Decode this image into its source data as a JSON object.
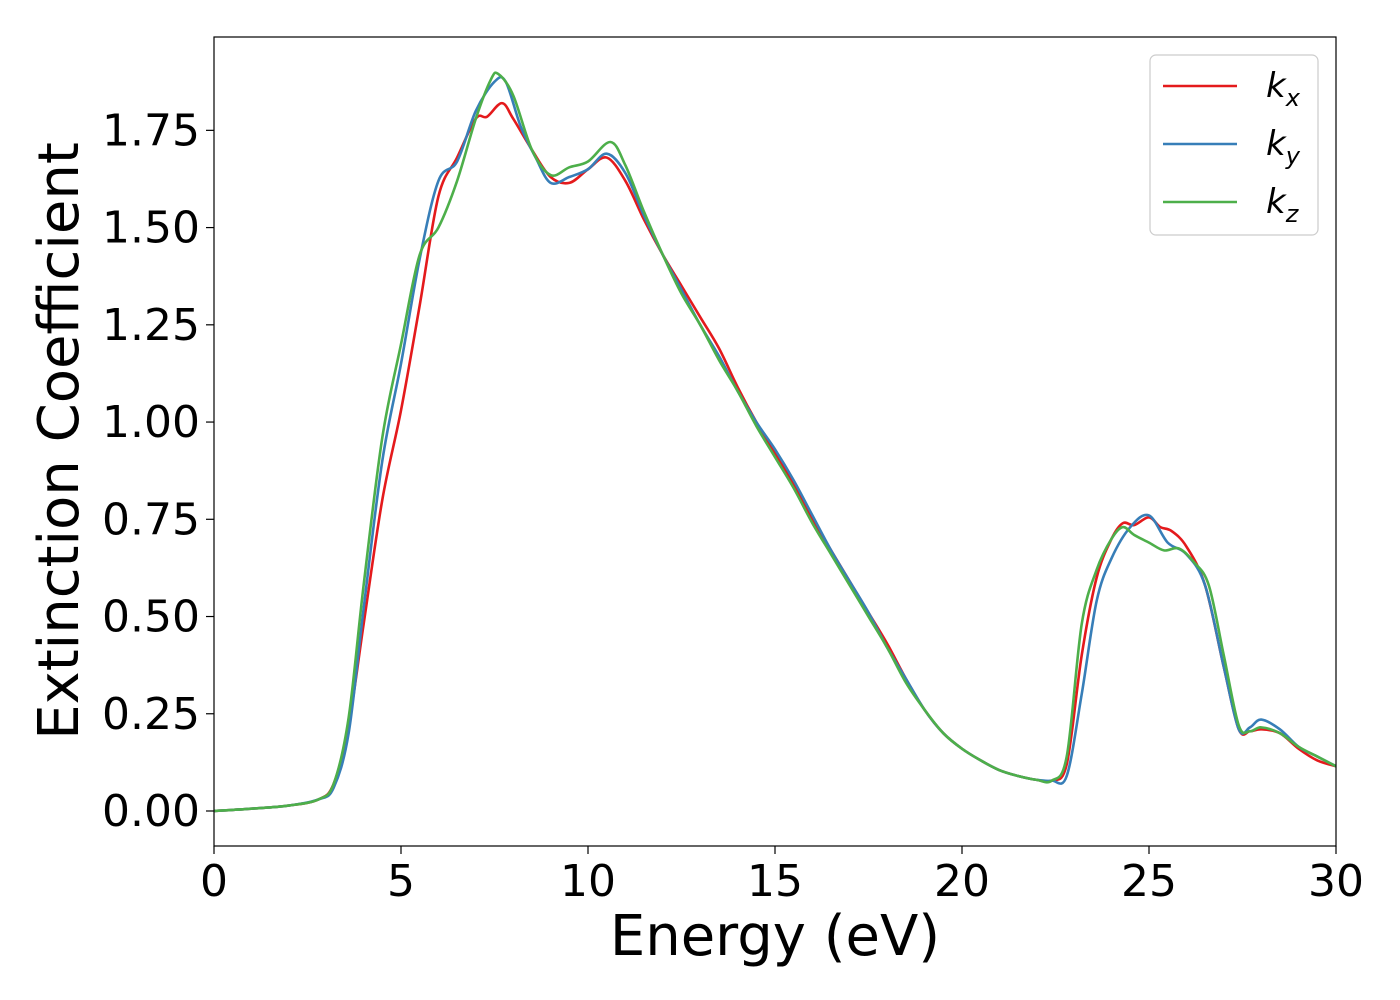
{
  "chart_data": {
    "type": "line",
    "title": "",
    "xlabel": "Energy (eV)",
    "ylabel": "Extinction Coefficient",
    "xlim": [
      0,
      30
    ],
    "ylim": [
      -0.09,
      1.99
    ],
    "xticks": [
      0,
      5,
      10,
      15,
      20,
      25,
      30
    ],
    "xtick_labels": [
      "0",
      "5",
      "10",
      "15",
      "20",
      "25",
      "30"
    ],
    "yticks": [
      0.0,
      0.25,
      0.5,
      0.75,
      1.0,
      1.25,
      1.5,
      1.75
    ],
    "ytick_labels": [
      "0.00",
      "0.25",
      "0.50",
      "0.75",
      "1.00",
      "1.25",
      "1.50",
      "1.75"
    ],
    "grid": false,
    "legend_position": "top-right",
    "series": [
      {
        "name": "k_x",
        "legend_base": "k",
        "legend_sub": "x",
        "color": "#e41a1c",
        "points": [
          [
            0,
            0.0
          ],
          [
            1,
            0.006
          ],
          [
            2,
            0.014
          ],
          [
            2.8,
            0.03
          ],
          [
            3.2,
            0.07
          ],
          [
            3.6,
            0.22
          ],
          [
            4.0,
            0.48
          ],
          [
            4.5,
            0.8
          ],
          [
            5.0,
            1.03
          ],
          [
            5.5,
            1.3
          ],
          [
            6.0,
            1.58
          ],
          [
            6.5,
            1.68
          ],
          [
            7.0,
            1.78
          ],
          [
            7.3,
            1.785
          ],
          [
            7.7,
            1.82
          ],
          [
            8.0,
            1.78
          ],
          [
            8.5,
            1.7
          ],
          [
            9.0,
            1.63
          ],
          [
            9.5,
            1.615
          ],
          [
            10.0,
            1.65
          ],
          [
            10.5,
            1.68
          ],
          [
            11.0,
            1.62
          ],
          [
            11.5,
            1.52
          ],
          [
            12.0,
            1.43
          ],
          [
            12.5,
            1.35
          ],
          [
            13.0,
            1.27
          ],
          [
            13.5,
            1.19
          ],
          [
            14.0,
            1.09
          ],
          [
            14.5,
            1.0
          ],
          [
            15.0,
            0.92
          ],
          [
            15.5,
            0.84
          ],
          [
            16.0,
            0.75
          ],
          [
            16.5,
            0.67
          ],
          [
            17.0,
            0.59
          ],
          [
            17.5,
            0.51
          ],
          [
            18.0,
            0.43
          ],
          [
            18.5,
            0.34
          ],
          [
            19.0,
            0.26
          ],
          [
            19.5,
            0.2
          ],
          [
            20.0,
            0.16
          ],
          [
            20.5,
            0.13
          ],
          [
            21.0,
            0.105
          ],
          [
            21.5,
            0.09
          ],
          [
            22.0,
            0.08
          ],
          [
            22.4,
            0.078
          ],
          [
            22.8,
            0.12
          ],
          [
            23.2,
            0.4
          ],
          [
            23.6,
            0.6
          ],
          [
            24.0,
            0.7
          ],
          [
            24.3,
            0.74
          ],
          [
            24.6,
            0.735
          ],
          [
            25.0,
            0.755
          ],
          [
            25.3,
            0.73
          ],
          [
            25.6,
            0.72
          ],
          [
            26.0,
            0.68
          ],
          [
            26.5,
            0.58
          ],
          [
            27.0,
            0.37
          ],
          [
            27.4,
            0.21
          ],
          [
            27.7,
            0.205
          ],
          [
            28.0,
            0.21
          ],
          [
            28.5,
            0.2
          ],
          [
            29.0,
            0.16
          ],
          [
            29.5,
            0.13
          ],
          [
            30,
            0.115
          ]
        ]
      },
      {
        "name": "k_y",
        "legend_base": "k",
        "legend_sub": "y",
        "color": "#377eb8",
        "points": [
          [
            0,
            0.0
          ],
          [
            1,
            0.006
          ],
          [
            2,
            0.014
          ],
          [
            2.8,
            0.03
          ],
          [
            3.2,
            0.06
          ],
          [
            3.6,
            0.2
          ],
          [
            4.0,
            0.52
          ],
          [
            4.5,
            0.9
          ],
          [
            5.0,
            1.15
          ],
          [
            5.5,
            1.42
          ],
          [
            6.0,
            1.62
          ],
          [
            6.5,
            1.67
          ],
          [
            7.0,
            1.8
          ],
          [
            7.5,
            1.875
          ],
          [
            7.8,
            1.875
          ],
          [
            8.2,
            1.76
          ],
          [
            8.6,
            1.68
          ],
          [
            9.0,
            1.615
          ],
          [
            9.5,
            1.63
          ],
          [
            10.0,
            1.65
          ],
          [
            10.5,
            1.69
          ],
          [
            11.0,
            1.64
          ],
          [
            11.5,
            1.53
          ],
          [
            12.0,
            1.43
          ],
          [
            12.5,
            1.34
          ],
          [
            13.0,
            1.25
          ],
          [
            13.5,
            1.17
          ],
          [
            14.0,
            1.08
          ],
          [
            14.5,
            1.0
          ],
          [
            15.0,
            0.93
          ],
          [
            15.5,
            0.85
          ],
          [
            16.0,
            0.76
          ],
          [
            16.5,
            0.67
          ],
          [
            17.0,
            0.59
          ],
          [
            17.5,
            0.51
          ],
          [
            18.0,
            0.42
          ],
          [
            18.5,
            0.34
          ],
          [
            19.0,
            0.26
          ],
          [
            19.5,
            0.2
          ],
          [
            20.0,
            0.16
          ],
          [
            20.5,
            0.13
          ],
          [
            21.0,
            0.105
          ],
          [
            21.5,
            0.09
          ],
          [
            22.0,
            0.08
          ],
          [
            22.4,
            0.078
          ],
          [
            22.8,
            0.09
          ],
          [
            23.2,
            0.3
          ],
          [
            23.6,
            0.54
          ],
          [
            24.0,
            0.65
          ],
          [
            24.5,
            0.73
          ],
          [
            25.0,
            0.76
          ],
          [
            25.5,
            0.69
          ],
          [
            26.0,
            0.66
          ],
          [
            26.5,
            0.58
          ],
          [
            27.0,
            0.37
          ],
          [
            27.4,
            0.21
          ],
          [
            27.7,
            0.215
          ],
          [
            28.0,
            0.235
          ],
          [
            28.5,
            0.21
          ],
          [
            29.0,
            0.165
          ],
          [
            29.5,
            0.14
          ],
          [
            30,
            0.115
          ]
        ]
      },
      {
        "name": "k_z",
        "legend_base": "k",
        "legend_sub": "z",
        "color": "#4daf4a",
        "points": [
          [
            0,
            0.0
          ],
          [
            1,
            0.006
          ],
          [
            2,
            0.014
          ],
          [
            2.8,
            0.03
          ],
          [
            3.2,
            0.07
          ],
          [
            3.6,
            0.24
          ],
          [
            4.0,
            0.58
          ],
          [
            4.5,
            0.96
          ],
          [
            5.0,
            1.2
          ],
          [
            5.5,
            1.43
          ],
          [
            6.0,
            1.5
          ],
          [
            6.5,
            1.62
          ],
          [
            7.0,
            1.78
          ],
          [
            7.4,
            1.88
          ],
          [
            7.6,
            1.895
          ],
          [
            8.0,
            1.84
          ],
          [
            8.5,
            1.7
          ],
          [
            9.0,
            1.635
          ],
          [
            9.5,
            1.655
          ],
          [
            10.0,
            1.67
          ],
          [
            10.6,
            1.72
          ],
          [
            11.0,
            1.66
          ],
          [
            11.5,
            1.54
          ],
          [
            12.0,
            1.43
          ],
          [
            12.5,
            1.33
          ],
          [
            13.0,
            1.25
          ],
          [
            13.5,
            1.16
          ],
          [
            14.0,
            1.08
          ],
          [
            14.5,
            0.99
          ],
          [
            15.0,
            0.91
          ],
          [
            15.5,
            0.83
          ],
          [
            16.0,
            0.74
          ],
          [
            16.5,
            0.66
          ],
          [
            17.0,
            0.58
          ],
          [
            17.5,
            0.5
          ],
          [
            18.0,
            0.42
          ],
          [
            18.5,
            0.33
          ],
          [
            19.0,
            0.26
          ],
          [
            19.5,
            0.2
          ],
          [
            20.0,
            0.16
          ],
          [
            20.5,
            0.13
          ],
          [
            21.0,
            0.105
          ],
          [
            21.5,
            0.09
          ],
          [
            22.0,
            0.08
          ],
          [
            22.4,
            0.078
          ],
          [
            22.8,
            0.14
          ],
          [
            23.2,
            0.48
          ],
          [
            23.6,
            0.62
          ],
          [
            24.0,
            0.7
          ],
          [
            24.3,
            0.73
          ],
          [
            24.6,
            0.71
          ],
          [
            25.0,
            0.69
          ],
          [
            25.4,
            0.67
          ],
          [
            25.8,
            0.675
          ],
          [
            26.2,
            0.64
          ],
          [
            26.6,
            0.58
          ],
          [
            27.0,
            0.4
          ],
          [
            27.4,
            0.22
          ],
          [
            27.7,
            0.205
          ],
          [
            28.0,
            0.215
          ],
          [
            28.5,
            0.2
          ],
          [
            29.0,
            0.165
          ],
          [
            29.5,
            0.14
          ],
          [
            30,
            0.115
          ]
        ]
      }
    ]
  }
}
